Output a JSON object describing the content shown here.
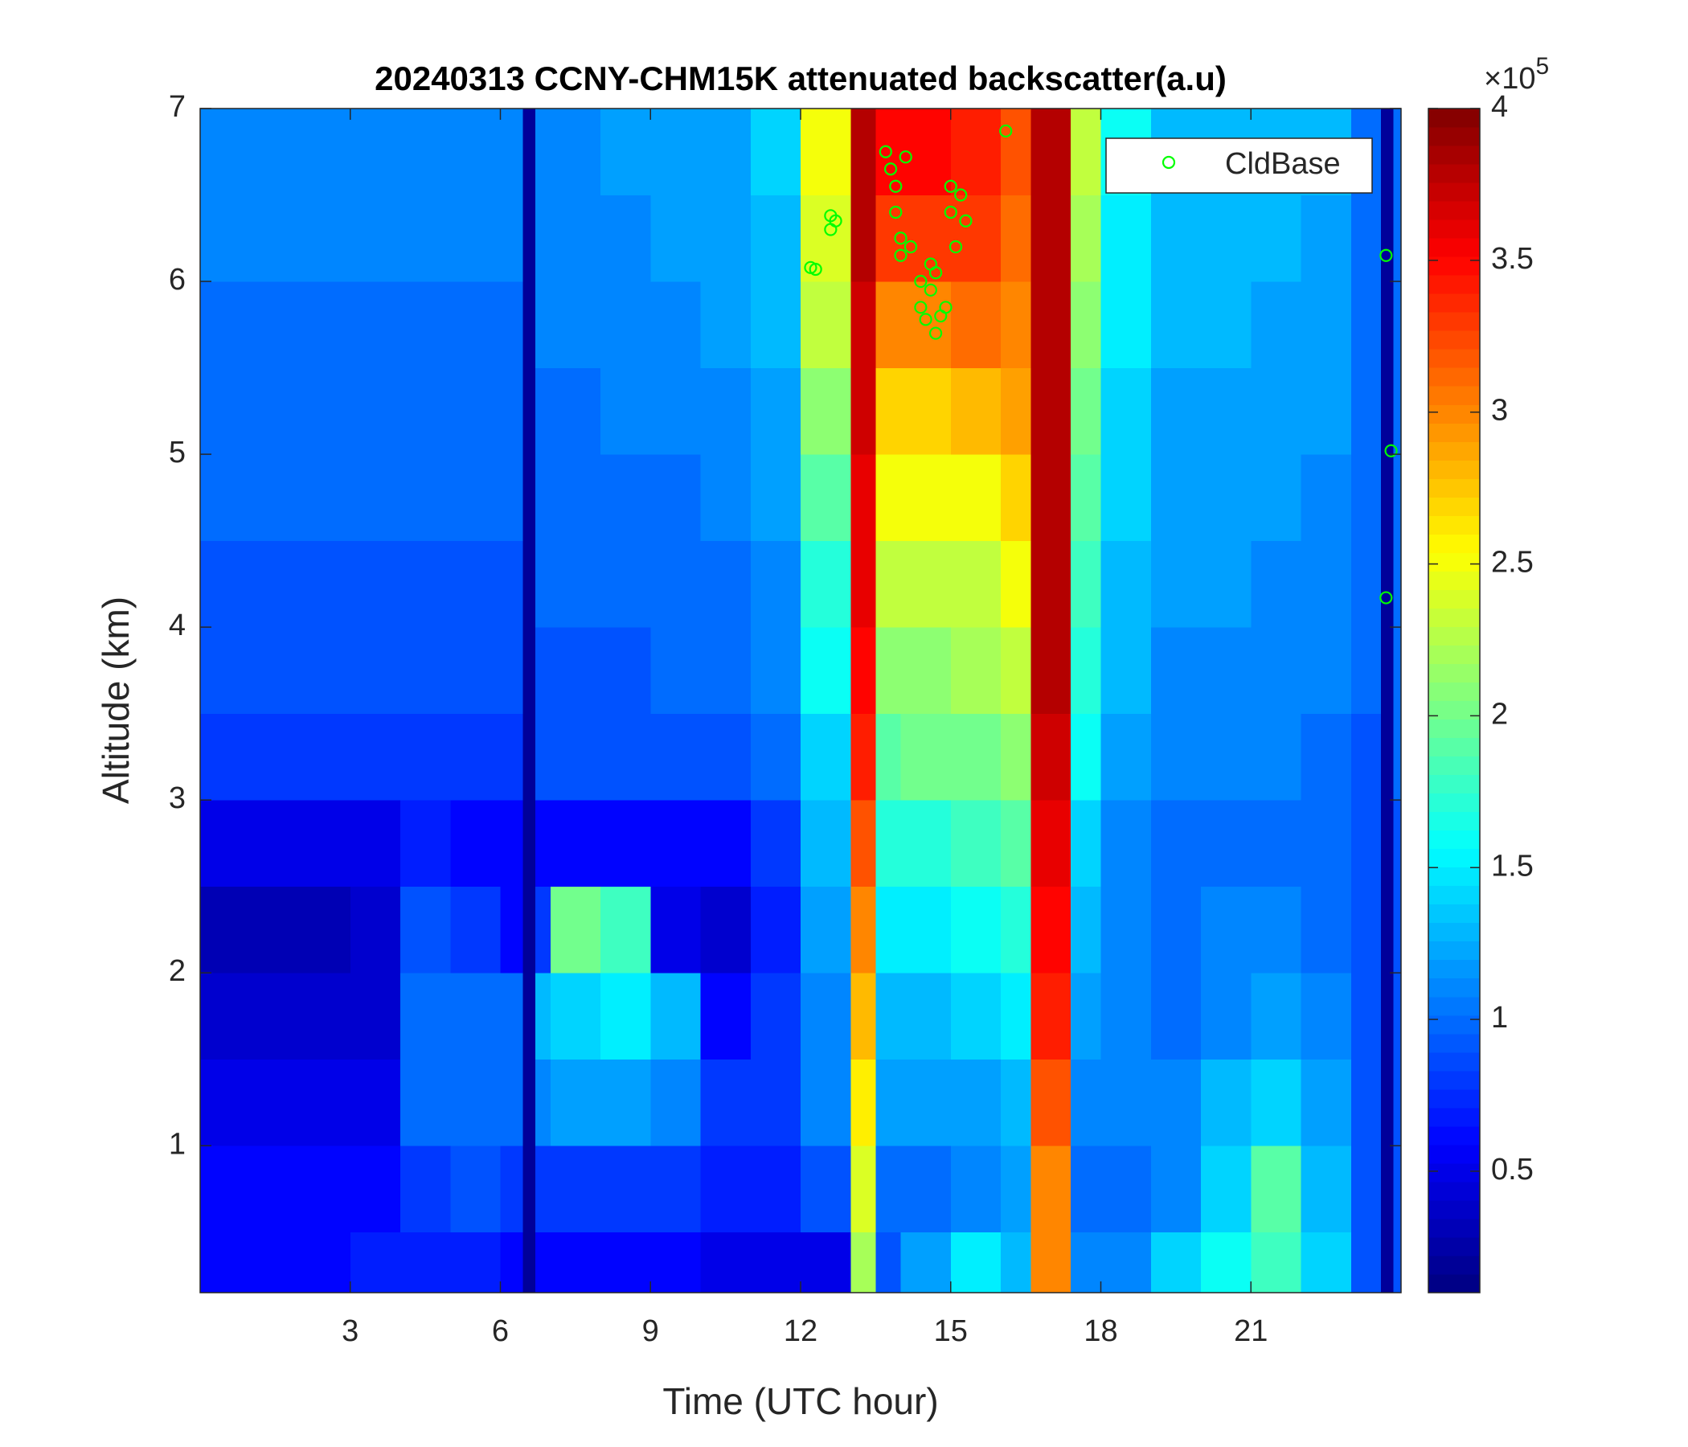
{
  "chart_data": {
    "type": "heatmap",
    "title": "20240313 CCNY-CHM15K attenuated backscatter(a.u)",
    "x_label": "Time (UTC hour)",
    "y_label": "Altitude (km)",
    "xlim": [
      0,
      24
    ],
    "ylim": [
      0.15,
      7
    ],
    "xticks": [
      3,
      6,
      9,
      12,
      15,
      18,
      21
    ],
    "yticks": [
      1,
      2,
      3,
      4,
      5,
      6,
      7
    ],
    "colormap": "jet",
    "clim": [
      0.1,
      4
    ],
    "colorbar_ticks": [
      0.5,
      1,
      1.5,
      2,
      2.5,
      3,
      3.5,
      4
    ],
    "colorbar_multiplier": "×10",
    "colorbar_exponent": "5",
    "x_edges": [
      0,
      1,
      2,
      3,
      4,
      5,
      6,
      6.45,
      6.7,
      7,
      8,
      9,
      10,
      11,
      12,
      13,
      13.5,
      14,
      15,
      16,
      16.6,
      17.4,
      18,
      19,
      20,
      21,
      22,
      23,
      23.6,
      23.85,
      24
    ],
    "y_edges": [
      0.15,
      0.5,
      1,
      1.5,
      2,
      2.5,
      3,
      3.5,
      4,
      4.5,
      5,
      5.5,
      6,
      6.5,
      7
    ],
    "values": [
      [
        0.6,
        0.6,
        0.6,
        0.7,
        0.7,
        0.7,
        0.6,
        0.2,
        0.6,
        0.6,
        0.6,
        0.6,
        0.5,
        0.5,
        0.5,
        2.2,
        0.9,
        1.2,
        1.5,
        1.3,
        3.0,
        1.1,
        1.1,
        1.4,
        1.6,
        1.8,
        1.4,
        0.9,
        0.2,
        0.9
      ],
      [
        0.6,
        0.6,
        0.6,
        0.6,
        0.8,
        0.9,
        0.8,
        0.2,
        0.8,
        0.8,
        0.8,
        0.8,
        0.7,
        0.7,
        0.9,
        2.4,
        1.0,
        1.0,
        1.1,
        1.2,
        3.0,
        1.0,
        1.0,
        1.1,
        1.4,
        1.9,
        1.3,
        0.9,
        0.2,
        0.9
      ],
      [
        0.5,
        0.5,
        0.5,
        0.5,
        1.0,
        1.0,
        1.0,
        0.2,
        1.1,
        1.2,
        1.2,
        1.1,
        0.8,
        0.8,
        1.1,
        2.6,
        1.2,
        1.2,
        1.2,
        1.3,
        3.2,
        1.1,
        1.1,
        1.1,
        1.3,
        1.4,
        1.2,
        0.9,
        0.2,
        0.9
      ],
      [
        0.4,
        0.4,
        0.4,
        0.4,
        1.0,
        1.0,
        1.0,
        0.2,
        1.3,
        1.4,
        1.5,
        1.3,
        0.6,
        0.8,
        1.1,
        2.8,
        1.3,
        1.3,
        1.4,
        1.5,
        3.4,
        1.2,
        1.1,
        1.0,
        1.1,
        1.2,
        1.1,
        0.9,
        0.2,
        0.9
      ],
      [
        0.3,
        0.3,
        0.3,
        0.4,
        0.9,
        0.8,
        0.6,
        0.2,
        0.8,
        2.0,
        1.8,
        0.5,
        0.4,
        0.7,
        1.2,
        3.0,
        1.5,
        1.5,
        1.6,
        1.7,
        3.5,
        1.3,
        1.1,
        1.0,
        1.1,
        1.1,
        1.0,
        0.9,
        0.2,
        0.9
      ],
      [
        0.5,
        0.5,
        0.5,
        0.5,
        0.7,
        0.6,
        0.6,
        0.2,
        0.6,
        0.6,
        0.6,
        0.6,
        0.6,
        0.8,
        1.3,
        3.2,
        1.7,
        1.7,
        1.8,
        1.9,
        3.6,
        1.4,
        1.1,
        1.0,
        1.0,
        1.0,
        1.0,
        0.9,
        0.2,
        0.9
      ],
      [
        0.8,
        0.8,
        0.8,
        0.8,
        0.8,
        0.8,
        0.8,
        0.2,
        0.9,
        0.9,
        0.9,
        0.9,
        0.9,
        1.0,
        1.4,
        3.4,
        1.9,
        2.0,
        2.0,
        2.1,
        3.7,
        1.6,
        1.2,
        1.1,
        1.1,
        1.1,
        1.0,
        0.9,
        0.2,
        1.0
      ],
      [
        0.9,
        0.9,
        0.9,
        0.9,
        0.9,
        0.9,
        0.9,
        0.2,
        0.9,
        0.9,
        0.9,
        1.0,
        1.0,
        1.1,
        1.6,
        3.5,
        2.1,
        2.1,
        2.2,
        2.3,
        3.8,
        1.7,
        1.3,
        1.1,
        1.1,
        1.1,
        1.1,
        1.0,
        0.2,
        1.0
      ],
      [
        0.9,
        0.9,
        0.9,
        0.9,
        0.9,
        0.9,
        0.9,
        0.2,
        1.0,
        1.0,
        1.0,
        1.0,
        1.0,
        1.1,
        1.7,
        3.6,
        2.3,
        2.3,
        2.3,
        2.5,
        3.8,
        1.8,
        1.3,
        1.2,
        1.2,
        1.1,
        1.1,
        1.0,
        0.2,
        1.0
      ],
      [
        1.0,
        1.0,
        1.0,
        1.0,
        1.0,
        1.0,
        1.0,
        0.2,
        1.0,
        1.0,
        1.0,
        1.0,
        1.1,
        1.2,
        1.9,
        3.6,
        2.5,
        2.5,
        2.5,
        2.7,
        3.8,
        1.9,
        1.4,
        1.2,
        1.2,
        1.2,
        1.1,
        1.0,
        0.2,
        1.0
      ],
      [
        1.0,
        1.0,
        1.0,
        1.0,
        1.0,
        1.0,
        1.0,
        0.2,
        1.0,
        1.0,
        1.1,
        1.1,
        1.1,
        1.2,
        2.1,
        3.7,
        2.7,
        2.7,
        2.8,
        2.9,
        3.8,
        2.0,
        1.4,
        1.2,
        1.2,
        1.2,
        1.2,
        1.0,
        0.2,
        1.0
      ],
      [
        1.0,
        1.0,
        1.0,
        1.0,
        1.0,
        1.0,
        1.0,
        0.2,
        1.1,
        1.1,
        1.1,
        1.1,
        1.2,
        1.3,
        2.3,
        3.7,
        3.0,
        3.0,
        3.1,
        3.0,
        3.8,
        2.1,
        1.5,
        1.3,
        1.3,
        1.2,
        1.2,
        1.0,
        0.2,
        1.0
      ],
      [
        1.1,
        1.1,
        1.1,
        1.1,
        1.1,
        1.1,
        1.1,
        0.2,
        1.1,
        1.1,
        1.1,
        1.2,
        1.2,
        1.3,
        2.4,
        3.8,
        3.3,
        3.3,
        3.3,
        3.1,
        3.8,
        2.2,
        1.5,
        1.3,
        1.3,
        1.3,
        1.2,
        1.0,
        0.2,
        1.0
      ],
      [
        1.1,
        1.1,
        1.1,
        1.1,
        1.1,
        1.1,
        1.1,
        0.2,
        1.1,
        1.1,
        1.2,
        1.2,
        1.2,
        1.4,
        2.5,
        3.8,
        3.5,
        3.5,
        3.4,
        3.2,
        3.8,
        2.3,
        1.6,
        1.3,
        1.3,
        1.3,
        1.3,
        1.0,
        0.2,
        1.0
      ]
    ],
    "legend": "upper right",
    "series": [
      {
        "name": "CldBase",
        "type": "scatter",
        "color": "#00ff00",
        "x": [
          12.2,
          12.3,
          12.6,
          12.6,
          12.7,
          13.7,
          13.8,
          13.9,
          13.9,
          14.0,
          14.0,
          14.2,
          14.1,
          14.4,
          14.4,
          14.5,
          14.6,
          14.6,
          14.7,
          14.7,
          14.8,
          14.9,
          15.0,
          15.0,
          15.1,
          15.2,
          15.3,
          16.1,
          23.7,
          23.8,
          23.7
        ],
        "y": [
          6.08,
          6.07,
          6.3,
          6.38,
          6.35,
          6.75,
          6.65,
          6.55,
          6.4,
          6.25,
          6.15,
          6.2,
          6.72,
          6.0,
          5.85,
          5.78,
          6.1,
          5.95,
          5.7,
          6.05,
          5.8,
          5.85,
          6.55,
          6.4,
          6.2,
          6.5,
          6.35,
          6.87,
          6.15,
          5.02,
          4.17
        ]
      }
    ]
  }
}
